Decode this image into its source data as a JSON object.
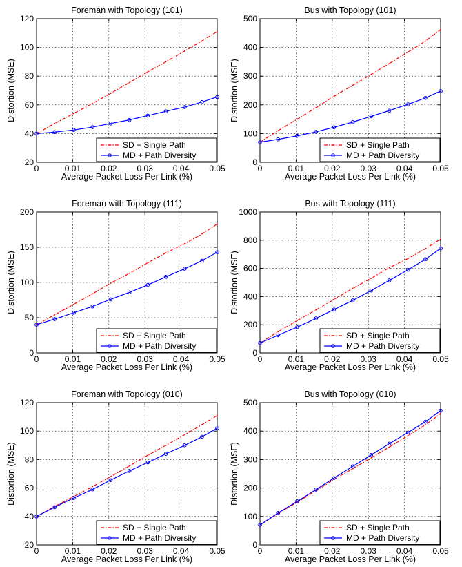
{
  "chart_data": [
    {
      "type": "line",
      "title": "Foreman with Topology (101)",
      "xlabel": "Average Packet Loss Per Link (%)",
      "ylabel": "Distortion (MSE)",
      "xlim": [
        0,
        0.05
      ],
      "ylim": [
        20,
        120
      ],
      "xticks": [
        "0",
        "0.01",
        "0.02",
        "0.03",
        "0.04",
        "0.05"
      ],
      "yticks": [
        "20",
        "40",
        "60",
        "80",
        "100",
        "120"
      ],
      "grid": true,
      "legend": "bottom-right",
      "x": [
        0,
        0.005,
        0.0103,
        0.0155,
        0.0205,
        0.0257,
        0.0308,
        0.0358,
        0.041,
        0.0458,
        0.05
      ],
      "series": [
        {
          "name": "SD + Single Path",
          "color": "#ff0000",
          "style": "dash-dot",
          "marker": "dot",
          "values": [
            40,
            47,
            54,
            61,
            68,
            75.5,
            83,
            90,
            97.5,
            104.5,
            111
          ]
        },
        {
          "name": "MD + Path Diversity",
          "color": "#0000ff",
          "style": "solid",
          "marker": "circle",
          "values": [
            40,
            41,
            42.5,
            44.5,
            47,
            49.5,
            52.5,
            55.5,
            58.5,
            62,
            65.5
          ]
        }
      ]
    },
    {
      "type": "line",
      "title": "Bus with Topology (101)",
      "xlabel": "Average Packet Loss Per Link (%)",
      "ylabel": "Distortion (MSE)",
      "xlim": [
        0,
        0.05
      ],
      "ylim": [
        0,
        500
      ],
      "xticks": [
        "0",
        "0.01",
        "0.02",
        "0.03",
        "0.04",
        "0.05"
      ],
      "yticks": [
        "0",
        "100",
        "200",
        "300",
        "400",
        "500"
      ],
      "grid": true,
      "legend": "bottom-right",
      "x": [
        0,
        0.005,
        0.0103,
        0.0155,
        0.0205,
        0.0257,
        0.0308,
        0.0358,
        0.041,
        0.0458,
        0.05
      ],
      "series": [
        {
          "name": "SD + Single Path",
          "color": "#ff0000",
          "style": "dash-dot",
          "marker": "dot",
          "values": [
            70,
            110,
            150,
            190,
            230,
            268,
            306,
            344,
            384,
            422,
            462
          ]
        },
        {
          "name": "MD + Path Diversity",
          "color": "#0000ff",
          "style": "solid",
          "marker": "circle",
          "values": [
            70,
            80,
            92,
            106,
            122,
            140,
            160,
            180,
            202,
            224,
            248
          ]
        }
      ]
    },
    {
      "type": "line",
      "title": "Foreman with Topology (111)",
      "xlabel": "Average Packet Loss Per Link (%)",
      "ylabel": "Distortion (MSE)",
      "xlim": [
        0,
        0.05
      ],
      "ylim": [
        0,
        200
      ],
      "xticks": [
        "0",
        "0.01",
        "0.02",
        "0.03",
        "0.04",
        "0.05"
      ],
      "yticks": [
        "0",
        "50",
        "100",
        "150",
        "200"
      ],
      "grid": true,
      "legend": "bottom-right",
      "x": [
        0,
        0.005,
        0.0103,
        0.0155,
        0.0205,
        0.0257,
        0.0308,
        0.0358,
        0.041,
        0.0458,
        0.05
      ],
      "series": [
        {
          "name": "SD + Single Path",
          "color": "#ff0000",
          "style": "dash-dot",
          "marker": "dot",
          "values": [
            40,
            54,
            69,
            84,
            99,
            113,
            128,
            142,
            155,
            169,
            183
          ]
        },
        {
          "name": "MD + Path Diversity",
          "color": "#0000ff",
          "style": "solid",
          "marker": "circle",
          "values": [
            40,
            48,
            57,
            66,
            76,
            86,
            96.5,
            108,
            119.5,
            131,
            143
          ]
        }
      ]
    },
    {
      "type": "line",
      "title": "Bus with Topology (111)",
      "xlabel": "Average Packet Loss Per Link (%)",
      "ylabel": "Distortion (MSE)",
      "xlim": [
        0,
        0.05
      ],
      "ylim": [
        0,
        1000
      ],
      "xticks": [
        "0",
        "0.01",
        "0.02",
        "0.03",
        "0.04",
        "0.05"
      ],
      "yticks": [
        "0",
        "200",
        "400",
        "600",
        "800",
        "1000"
      ],
      "grid": true,
      "legend": "bottom-right",
      "x": [
        0,
        0.005,
        0.0103,
        0.0155,
        0.0205,
        0.0257,
        0.0308,
        0.0358,
        0.041,
        0.0458,
        0.05
      ],
      "series": [
        {
          "name": "SD + Single Path",
          "color": "#ff0000",
          "style": "dash-dot",
          "marker": "dot",
          "values": [
            70,
            150,
            230,
            305,
            380,
            458,
            530,
            605,
            670,
            740,
            808
          ]
        },
        {
          "name": "MD + Path Diversity",
          "color": "#0000ff",
          "style": "solid",
          "marker": "circle",
          "values": [
            70,
            125,
            183,
            245,
            308,
            373,
            443,
            515,
            590,
            665,
            742
          ]
        }
      ]
    },
    {
      "type": "line",
      "title": "Foreman with Topology (010)",
      "xlabel": "Average Packet Loss Per Link (%)",
      "ylabel": "Distortion (MSE)",
      "xlim": [
        0,
        0.05
      ],
      "ylim": [
        20,
        120
      ],
      "xticks": [
        "0",
        "0.01",
        "0.02",
        "0.03",
        "0.04",
        "0.05"
      ],
      "yticks": [
        "20",
        "40",
        "60",
        "80",
        "100",
        "120"
      ],
      "grid": true,
      "legend": "bottom-right",
      "x": [
        0,
        0.005,
        0.0103,
        0.0155,
        0.0205,
        0.0257,
        0.0308,
        0.0358,
        0.041,
        0.0458,
        0.05
      ],
      "series": [
        {
          "name": "SD + Single Path",
          "color": "#ff0000",
          "style": "dash-dot",
          "marker": "dot",
          "values": [
            40,
            47,
            54,
            61,
            68,
            75.5,
            83,
            90,
            97.5,
            104.5,
            111
          ]
        },
        {
          "name": "MD + Path Diversity",
          "color": "#0000ff",
          "style": "solid",
          "marker": "circle",
          "values": [
            40,
            46.5,
            53,
            59,
            65.5,
            72,
            78,
            84,
            90,
            96,
            102
          ]
        }
      ]
    },
    {
      "type": "line",
      "title": "Bus with Topology (010)",
      "xlabel": "Average Packet Loss Per Link (%)",
      "ylabel": "Distortion (MSE)",
      "xlim": [
        0,
        0.05
      ],
      "ylim": [
        0,
        500
      ],
      "xticks": [
        "0",
        "0.01",
        "0.02",
        "0.03",
        "0.04",
        "0.05"
      ],
      "yticks": [
        "0",
        "100",
        "200",
        "300",
        "400",
        "500"
      ],
      "grid": true,
      "legend": "bottom-right",
      "x": [
        0,
        0.005,
        0.0103,
        0.0155,
        0.0205,
        0.0257,
        0.0308,
        0.0358,
        0.041,
        0.0458,
        0.05
      ],
      "series": [
        {
          "name": "SD + Single Path",
          "color": "#ff0000",
          "style": "dash-dot",
          "marker": "dot",
          "values": [
            70,
            110,
            150,
            190,
            230,
            268,
            306,
            344,
            384,
            422,
            462
          ]
        },
        {
          "name": "MD + Path Diversity",
          "color": "#0000ff",
          "style": "solid",
          "marker": "circle",
          "values": [
            70,
            112,
            153,
            194,
            235,
            276,
            316,
            356,
            395,
            433,
            472
          ]
        }
      ]
    }
  ]
}
